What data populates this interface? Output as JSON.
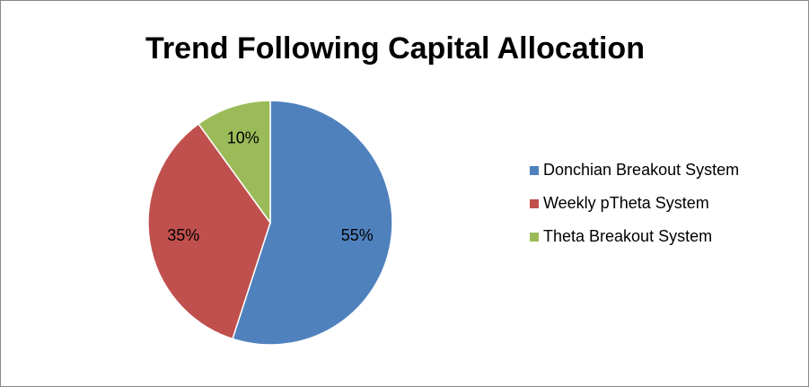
{
  "chart_data": {
    "type": "pie",
    "title": "Trend Following Capital Allocation",
    "categories": [
      "Donchian Breakout System",
      "Weekly pTheta System",
      "Theta Breakout System"
    ],
    "values": [
      55,
      35,
      10
    ],
    "value_labels": [
      "55%",
      "35%",
      "10%"
    ],
    "colors": [
      "#4f81bd",
      "#c0504d",
      "#9bbb59"
    ],
    "legend": "right"
  }
}
